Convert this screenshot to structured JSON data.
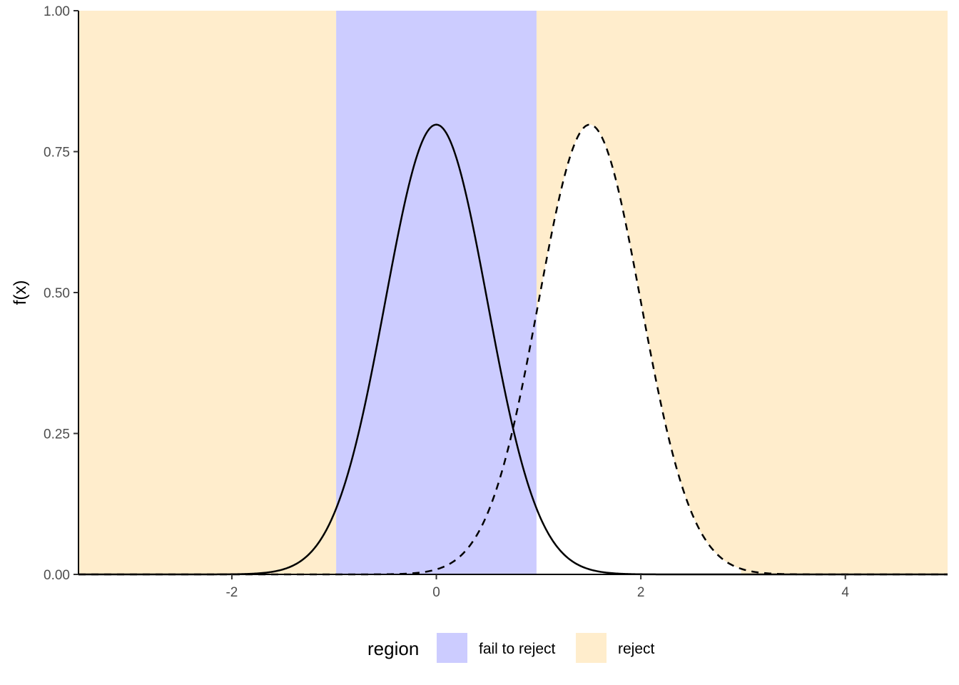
{
  "chart_data": {
    "type": "area",
    "ylabel": "f(x)",
    "xlabel": "",
    "xlim": [
      -3.5,
      5
    ],
    "ylim": [
      0,
      1
    ],
    "x_ticks": [
      -2,
      0,
      2,
      4
    ],
    "x_tick_labels": [
      "-2",
      "0",
      "2",
      "4"
    ],
    "y_ticks": [
      0,
      0.25,
      0.5,
      0.75,
      1
    ],
    "y_tick_labels": [
      "0.00",
      "0.25",
      "0.50",
      "0.75",
      "1.00"
    ],
    "grid": false,
    "regions": [
      {
        "region": "reject",
        "x_from": -3.5,
        "x_to": -0.98
      },
      {
        "region": "fail to reject",
        "x_from": -0.98,
        "x_to": 0.98
      },
      {
        "region": "reject",
        "x_from": 0.98,
        "x_to": 5
      }
    ],
    "series": [
      {
        "distribution": "normal",
        "mean": 0,
        "sd": 0.5,
        "line_style": "solid",
        "color": "#000000"
      },
      {
        "distribution": "normal",
        "mean": 1.5,
        "sd": 0.5,
        "line_style": "dashed",
        "color": "#000000"
      }
    ],
    "alternative_area_unshaded_between": [
      0.98,
      2.98
    ],
    "legend": {
      "title": "region",
      "position": "bottom",
      "entries": [
        {
          "label": "fail to reject",
          "color": "#ccccff"
        },
        {
          "label": "reject",
          "color": "#ffedcc"
        }
      ]
    }
  }
}
